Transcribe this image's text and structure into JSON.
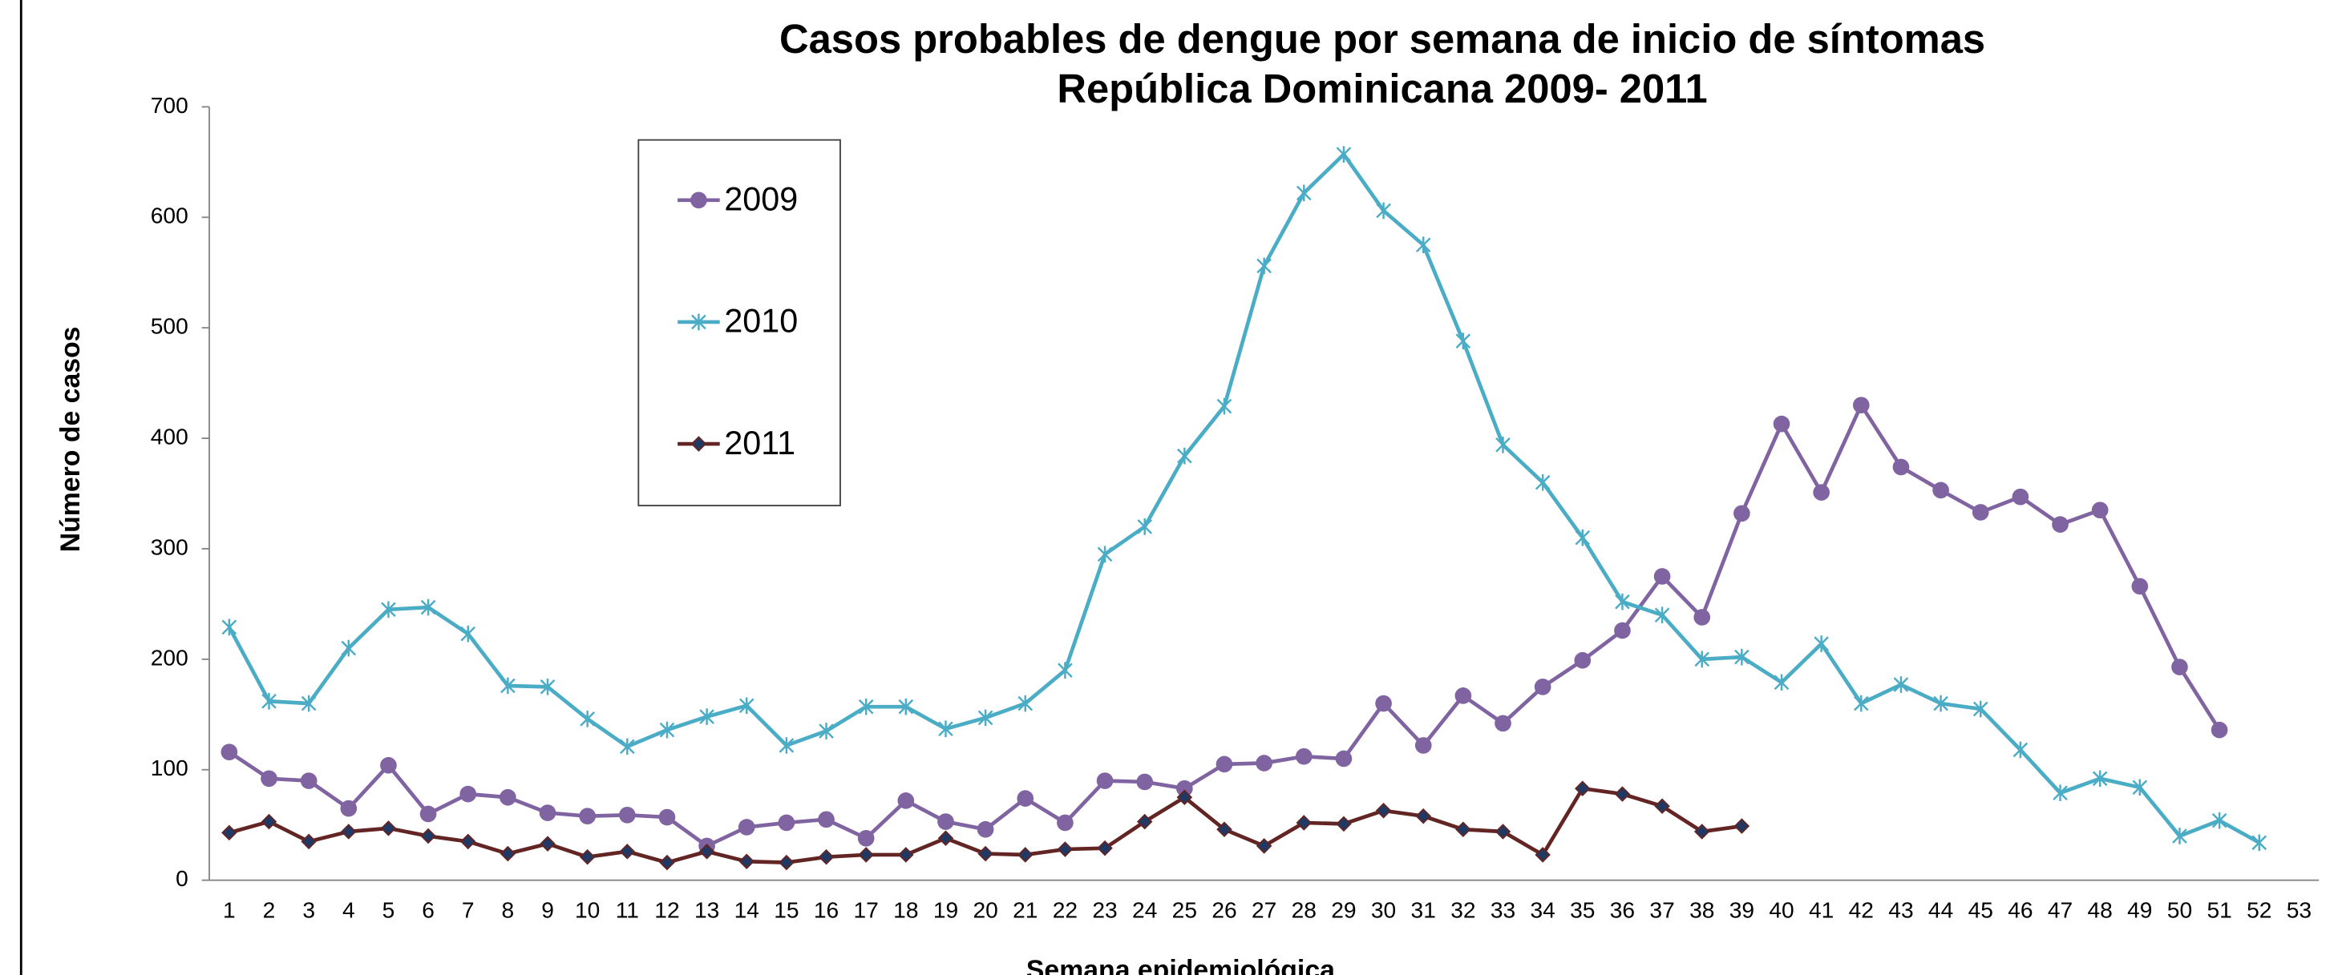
{
  "chart_data": {
    "type": "line",
    "title": [
      "Casos probables de dengue por semana de inicio de síntomas",
      "República Dominicana 2009- 2011"
    ],
    "x_label": "Semana epidemiológica",
    "y_label": "Número de casos",
    "categories": [
      "1",
      "2",
      "3",
      "4",
      "5",
      "6",
      "7",
      "8",
      "9",
      "10",
      "11",
      "12",
      "13",
      "14",
      "15",
      "16",
      "17",
      "18",
      "19",
      "20",
      "21",
      "22",
      "23",
      "24",
      "25",
      "26",
      "27",
      "28",
      "29",
      "30",
      "31",
      "32",
      "33",
      "34",
      "35",
      "36",
      "37",
      "38",
      "39",
      "40",
      "41",
      "42",
      "43",
      "44",
      "45",
      "46",
      "47",
      "48",
      "49",
      "50",
      "51",
      "52",
      "53"
    ],
    "ylim": [
      0,
      700
    ],
    "yticks": [
      0,
      100,
      200,
      300,
      400,
      500,
      600,
      700
    ],
    "legend": "upper left",
    "series": [
      {
        "name": "2009",
        "color": "#8064a2",
        "marker": "circle",
        "values": [
          116,
          92,
          90,
          65,
          104,
          60,
          78,
          75,
          61,
          58,
          59,
          57,
          31,
          48,
          52,
          55,
          38,
          72,
          53,
          46,
          74,
          52,
          90,
          89,
          83,
          105,
          106,
          112,
          110,
          160,
          122,
          167,
          142,
          175,
          199,
          226,
          275,
          238,
          332,
          413,
          351,
          430,
          374,
          353,
          333,
          347,
          322,
          335,
          266,
          193,
          136,
          null,
          null
        ]
      },
      {
        "name": "2010",
        "color": "#4bacc6",
        "marker": "star",
        "values": [
          229,
          162,
          160,
          210,
          245,
          247,
          223,
          176,
          175,
          146,
          121,
          136,
          148,
          158,
          122,
          135,
          157,
          157,
          137,
          147,
          160,
          190,
          295,
          320,
          384,
          429,
          556,
          622,
          657,
          606,
          575,
          488,
          394,
          360,
          310,
          252,
          240,
          200,
          202,
          179,
          214,
          160,
          177,
          160,
          155,
          118,
          79,
          92,
          84,
          40,
          54,
          34,
          null
        ]
      },
      {
        "name": "2011",
        "color": "#632523",
        "marker": "diamond",
        "values": [
          43,
          53,
          35,
          44,
          47,
          40,
          35,
          24,
          33,
          21,
          26,
          16,
          26,
          17,
          16,
          21,
          23,
          23,
          38,
          24,
          23,
          28,
          29,
          53,
          75,
          46,
          31,
          52,
          51,
          63,
          58,
          46,
          44,
          23,
          83,
          78,
          67,
          44,
          49,
          null,
          null,
          null,
          null,
          null,
          null,
          null,
          null,
          null,
          null,
          null,
          null,
          null,
          null
        ]
      }
    ]
  }
}
